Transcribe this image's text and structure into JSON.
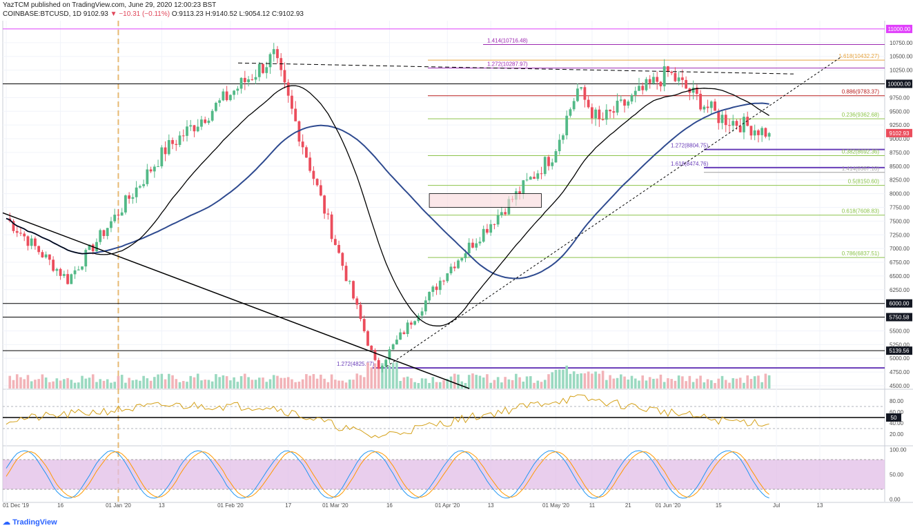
{
  "header": {
    "line1": "YazTCM published on TradingView.com, June 29, 2020 12:00:23 BST",
    "symbol": "COINBASE:BTCUSD, 1D",
    "last": "9102.93",
    "arrow": "▼",
    "change": "−10.31 (−0.11%)",
    "open": "O:9113.23",
    "high": "H:9140.52",
    "low": "L:9054.12",
    "close": "C:9102.93"
  },
  "branding": {
    "logo_text": "TradingView"
  },
  "colors": {
    "up": "#53b987",
    "down": "#eb4d5c",
    "fib_green": "#8bc34a",
    "fib_red": "#b71c1c",
    "purple": "#9c27b0",
    "violet": "#673ab7",
    "ma_black": "#000000",
    "ma_blue": "#2e4a8f",
    "rsi": "#d4a017",
    "stoch_k": "#2196f3",
    "stoch_d": "#ff9800",
    "band": "#e1bee7",
    "tag_dark": "#131722",
    "tag_magenta": "#e040fb",
    "tag_price": "#eb4d5c"
  },
  "chart_data": [
    {
      "type": "candlestick",
      "title": "COINBASE:BTCUSD, 1D",
      "x_tick_labels": [
        "01 Dec '19",
        "16",
        "01 Jan '20",
        "13",
        "01 Feb '20",
        "17",
        "01 Mar '20",
        "16",
        "01 Apr '20",
        "13",
        "01 May '20",
        "11",
        "21",
        "01 Jun '20",
        "15",
        "Jul",
        "13"
      ],
      "y_tick_labels": [
        "4500.00",
        "4750.00",
        "5000.00",
        "5250.00",
        "5500.00",
        "5750.00",
        "6000.00",
        "6250.00",
        "6500.00",
        "6750.00",
        "7000.00",
        "7250.00",
        "7500.00",
        "7750.00",
        "8000.00",
        "8250.00",
        "8500.00",
        "8750.00",
        "9000.00",
        "9250.00",
        "9500.00",
        "9750.00",
        "10000.00",
        "10250.00",
        "10500.00",
        "10750.00",
        "11000.00"
      ],
      "ylim": [
        4450,
        11150
      ],
      "price_tags": [
        "11000.00",
        "10000.00",
        "9102.93",
        "6000.00",
        "5750.58",
        "5139.56"
      ],
      "fib_labels": [
        {
          "text": "1.414(10716.48)",
          "value": 10716.48,
          "color": "#9c27b0"
        },
        {
          "text": "1.618(10432.27)",
          "value": 10432.27,
          "color": "#e6a23c"
        },
        {
          "text": "1.272(10287.97)",
          "value": 10287.97,
          "color": "#9c27b0"
        },
        {
          "text": "0.886(9783.37)",
          "value": 9783.37,
          "color": "#b71c1c"
        },
        {
          "text": "0.236(9362.68)",
          "value": 9362.68,
          "color": "#8bc34a"
        },
        {
          "text": "1.272(8804.75)",
          "value": 8804.75,
          "color": "#673ab7"
        },
        {
          "text": "0.382(8692.36)",
          "value": 8692.36,
          "color": "#8bc34a"
        },
        {
          "text": "1.618(8474.76)",
          "value": 8474.76,
          "color": "#673ab7"
        },
        {
          "text": "1.414(8387.10)",
          "value": 8387.1,
          "color": "#9e9e9e"
        },
        {
          "text": "0.5(8150.60)",
          "value": 8150.6,
          "color": "#8bc34a"
        },
        {
          "text": "0.618(7608.83)",
          "value": 7608.83,
          "color": "#8bc34a"
        },
        {
          "text": "0.786(6837.51)",
          "value": 6837.51,
          "color": "#8bc34a"
        },
        {
          "text": "1.272(4825.67)",
          "value": 4825.67,
          "color": "#673ab7"
        }
      ],
      "horizontal_levels": [
        11000,
        10000,
        6000,
        5750.58,
        5139.56
      ],
      "key_prices": [
        {
          "date": "2019-12-01",
          "price": 7550
        },
        {
          "date": "2019-12-18",
          "price": 6430
        },
        {
          "date": "2020-01-14",
          "price": 8800
        },
        {
          "date": "2020-02-13",
          "price": 10500
        },
        {
          "date": "2020-03-12",
          "price": 4900
        },
        {
          "date": "2020-03-13",
          "price": 4850
        },
        {
          "date": "2020-04-01",
          "price": 6600
        },
        {
          "date": "2020-04-30",
          "price": 8700
        },
        {
          "date": "2020-05-07",
          "price": 9900
        },
        {
          "date": "2020-05-13",
          "price": 9300
        },
        {
          "date": "2020-06-01",
          "price": 10200
        },
        {
          "date": "2020-06-15",
          "price": 9400
        },
        {
          "date": "2020-06-29",
          "price": 9102.93
        }
      ],
      "series": [
        {
          "name": "",
          "kind": "ema_fast",
          "color": "#000000"
        },
        {
          "name": "",
          "kind": "sma_200",
          "color": "#2e4a8f"
        }
      ],
      "grid": true
    },
    {
      "type": "line",
      "title": "",
      "series": [
        {
          "name": "",
          "color": "#d4a017"
        }
      ],
      "y_tick_labels": [
        "80.00",
        "60.00",
        "50.00",
        "40.00",
        "20.00"
      ],
      "ylim": [
        0,
        100
      ],
      "levels": [
        70,
        30,
        50
      ],
      "key_values": [
        {
          "date": "2019-12-01",
          "value": 45
        },
        {
          "date": "2020-01-14",
          "value": 72
        },
        {
          "date": "2020-02-12",
          "value": 70
        },
        {
          "date": "2020-03-12",
          "value": 15
        },
        {
          "date": "2020-04-30",
          "value": 80
        },
        {
          "date": "2020-05-08",
          "value": 85
        },
        {
          "date": "2020-06-15",
          "value": 45
        },
        {
          "date": "2020-06-29",
          "value": 40
        }
      ]
    },
    {
      "type": "line",
      "title": "",
      "series": [
        {
          "name": "",
          "color": "#2196f3"
        },
        {
          "name": "",
          "color": "#ff9800"
        }
      ],
      "y_tick_labels": [
        "100.00",
        "50.00",
        "0.00"
      ],
      "ylim": [
        -5,
        105
      ],
      "band": [
        20,
        80
      ]
    }
  ]
}
